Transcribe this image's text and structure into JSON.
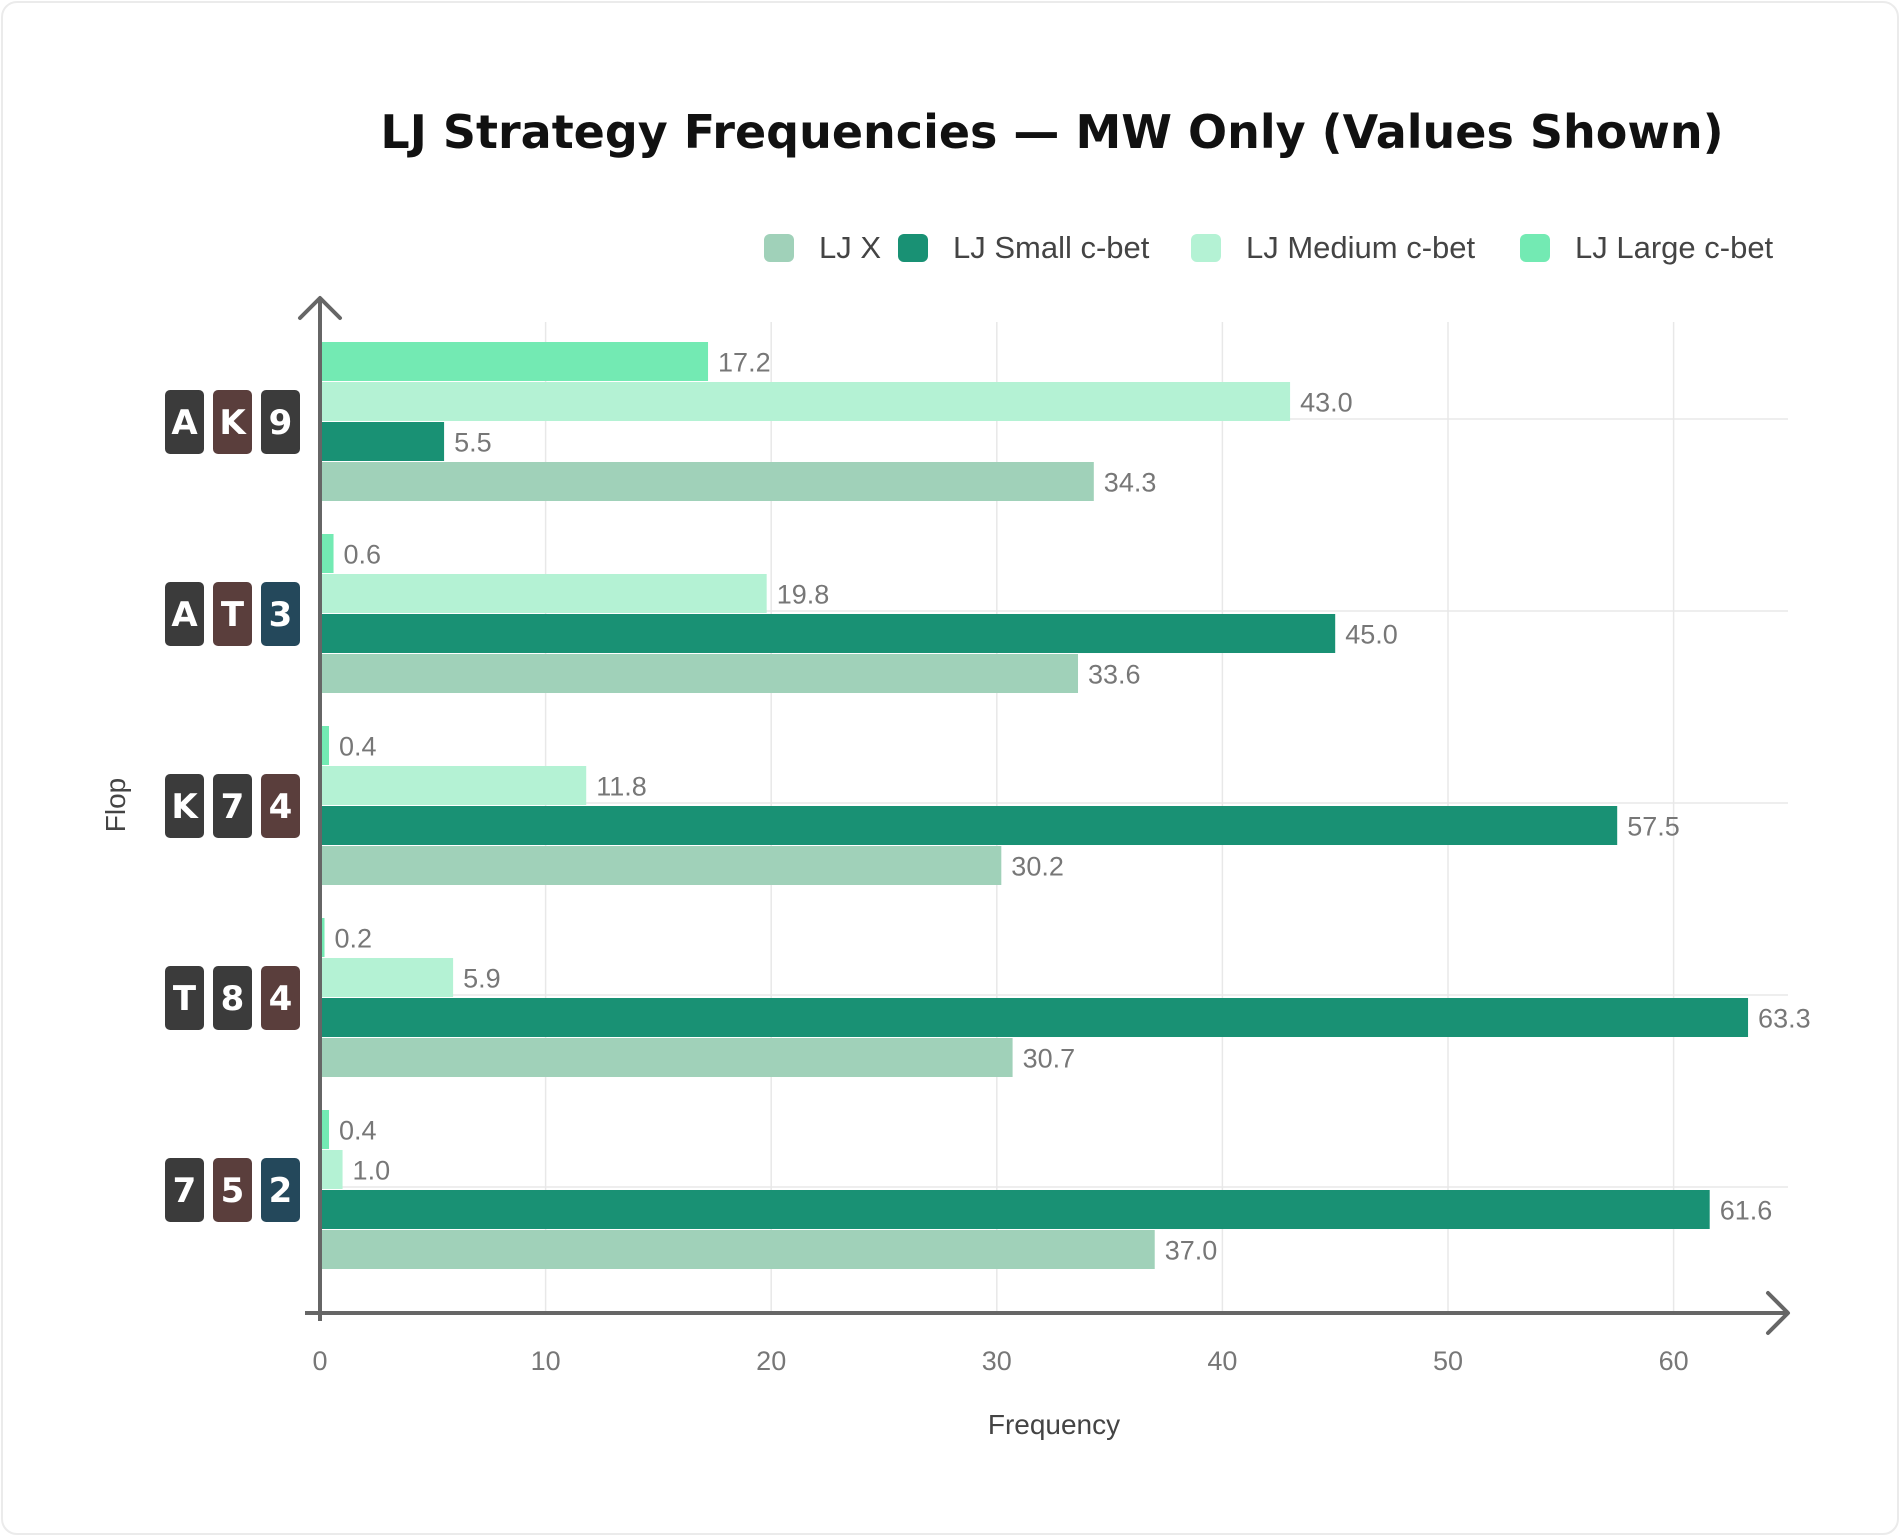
{
  "chart_data": {
    "type": "bar",
    "orientation": "horizontal",
    "title": "LJ Strategy Frequencies — MW Only (Values Shown)",
    "xlabel": "Frequency",
    "ylabel": "Flop",
    "xlim": [
      0,
      65
    ],
    "xticks": [
      0,
      10,
      20,
      30,
      40,
      50,
      60
    ],
    "grid": true,
    "legend_position": "top-right",
    "categories": [
      {
        "cards": [
          {
            "rank": "A",
            "suit": "spade"
          },
          {
            "rank": "K",
            "suit": "heart"
          },
          {
            "rank": "9",
            "suit": "spade"
          }
        ]
      },
      {
        "cards": [
          {
            "rank": "A",
            "suit": "spade"
          },
          {
            "rank": "T",
            "suit": "heart"
          },
          {
            "rank": "3",
            "suit": "diamond"
          }
        ]
      },
      {
        "cards": [
          {
            "rank": "K",
            "suit": "spade"
          },
          {
            "rank": "7",
            "suit": "spade"
          },
          {
            "rank": "4",
            "suit": "heart"
          }
        ]
      },
      {
        "cards": [
          {
            "rank": "T",
            "suit": "spade"
          },
          {
            "rank": "8",
            "suit": "spade"
          },
          {
            "rank": "4",
            "suit": "heart"
          }
        ]
      },
      {
        "cards": [
          {
            "rank": "7",
            "suit": "spade"
          },
          {
            "rank": "5",
            "suit": "heart"
          },
          {
            "rank": "2",
            "suit": "diamond"
          }
        ]
      }
    ],
    "series": [
      {
        "name": "LJ X",
        "color": "#a0d1b9",
        "values": [
          34.3,
          33.6,
          30.2,
          30.7,
          37.0
        ],
        "labels": [
          "34.3",
          "33.6",
          "30.2",
          "30.7",
          "37.0"
        ]
      },
      {
        "name": "LJ Small c-bet",
        "color": "#199174",
        "values": [
          5.5,
          45.0,
          57.5,
          63.3,
          61.6
        ],
        "labels": [
          "5.5",
          "45.0",
          "57.5",
          "63.3",
          "61.6"
        ]
      },
      {
        "name": "LJ Medium c-bet",
        "color": "#b4f2d4",
        "values": [
          43.0,
          19.8,
          11.8,
          5.9,
          1.0
        ],
        "labels": [
          "43.0",
          "19.8",
          "11.8",
          "5.9",
          "1.0"
        ]
      },
      {
        "name": "LJ Large c-bet",
        "color": "#73eab3",
        "values": [
          17.2,
          0.6,
          0.4,
          0.2,
          0.4
        ],
        "labels": [
          "17.2",
          "0.6",
          "0.4",
          "0.2",
          "0.4"
        ]
      }
    ],
    "suit_colors": {
      "spade": "#3b3b3b",
      "heart": "#5a3e3c",
      "diamond": "#24485b"
    },
    "axis_color": "#666666",
    "grid_color": "#e8e8e8"
  }
}
